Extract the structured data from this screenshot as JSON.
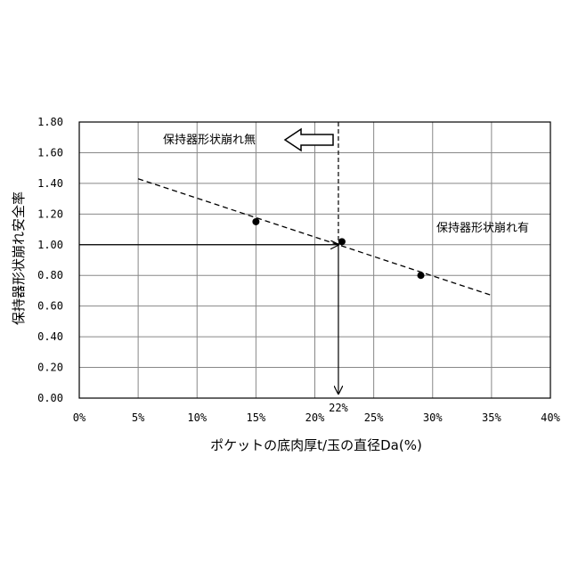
{
  "chart_data": {
    "type": "scatter",
    "xlabel": "ポケットの底肉厚t/玉の直径Da(%)",
    "ylabel": "保持器形状崩れ安全率",
    "xlim": [
      0,
      40
    ],
    "ylim": [
      0,
      1.8
    ],
    "x_ticks": [
      "0%",
      "5%",
      "10%",
      "15%",
      "20%",
      "25%",
      "30%",
      "35%",
      "40%"
    ],
    "y_ticks": [
      "0.00",
      "0.20",
      "0.40",
      "0.60",
      "0.80",
      "1.00",
      "1.20",
      "1.40",
      "1.60",
      "1.80"
    ],
    "grid": true,
    "points": [
      {
        "x": 15,
        "y": 1.15
      },
      {
        "x": 22.3,
        "y": 1.02
      },
      {
        "x": 29,
        "y": 0.8
      }
    ],
    "trendline": {
      "x": [
        5,
        35
      ],
      "y": [
        1.43,
        0.67
      ],
      "style": "dashed"
    },
    "threshold": {
      "y": 1.0,
      "x": 22
    },
    "annotations": {
      "no_deformation": "保持器形状崩れ無",
      "deformation": "保持器形状崩れ有",
      "threshold_label": "22%"
    }
  }
}
